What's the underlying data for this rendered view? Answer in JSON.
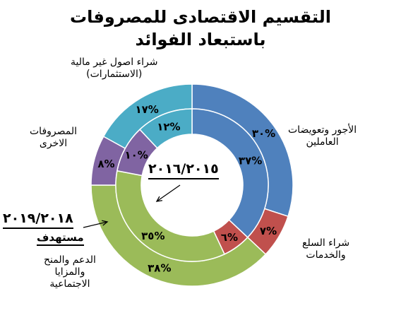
{
  "chart_data": {
    "type": "donut",
    "title_line1": "التقسيم الاقتصادى للمصروفات",
    "title_line2": "باستبعاد الفوائد",
    "categories": [
      "الأجور وتعويضات العاملين",
      "شراء السلع والخدمات",
      "الدعم والمنح والمزايا الاجتماعية",
      "المصروفات الاخرى",
      "شراء اصول غير مالية (الاستثمارات)"
    ],
    "category_lines": [
      [
        "الأجور وتعويضات",
        "العاملين"
      ],
      [
        "شراء السلع",
        "والخدمات"
      ],
      [
        "الدعم والمنح",
        "والمزايا",
        "الاجتماعية"
      ],
      [
        "المصروفات",
        "الاخرى"
      ],
      [
        "شراء اصول غير مالية",
        "(الاستثمارات)"
      ]
    ],
    "colors": [
      "#4f81bd",
      "#c0504d",
      "#9bbb59",
      "#8064a2",
      "#4bacc6"
    ],
    "series": [
      {
        "name": "٢٠١٨/٢٠١٩ مستهدف",
        "ring": "outer",
        "values": [
          30,
          7,
          38,
          8,
          17
        ],
        "value_labels": [
          "٣٠%",
          "٧%",
          "٣٨%",
          "٨%",
          "١٧%"
        ]
      },
      {
        "name": "٢٠١٥/٢٠١٦",
        "ring": "inner",
        "values": [
          37,
          6,
          35,
          10,
          12
        ],
        "value_labels": [
          "٣٧%",
          "٦%",
          "٣٥%",
          "١٠%",
          "١٢%"
        ]
      }
    ],
    "period_labels": {
      "inner": "٢٠١٦/٢٠١٥",
      "outer": "٢٠١٩/٢٠١٨",
      "outer_note": "مستهدف"
    }
  }
}
